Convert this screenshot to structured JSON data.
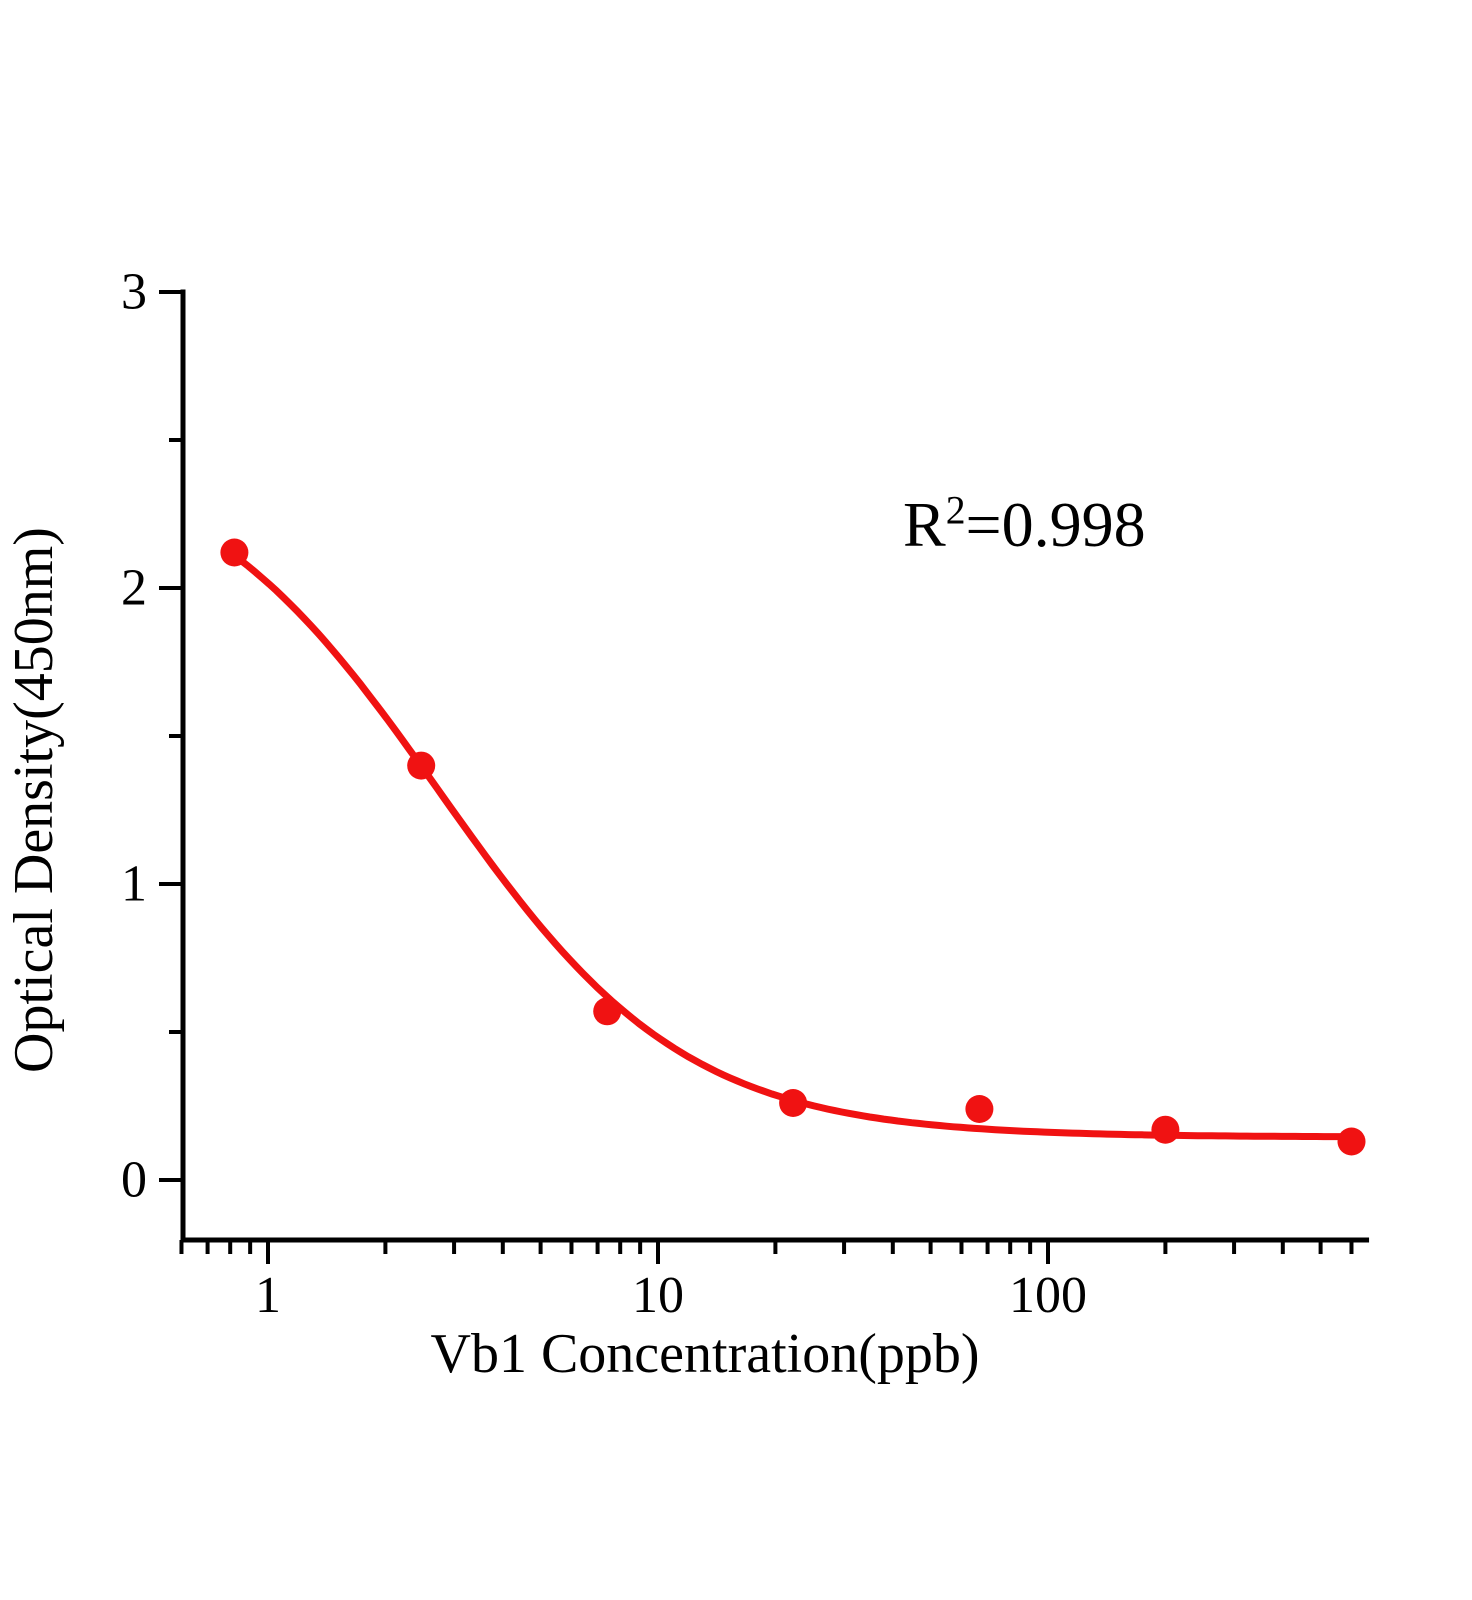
{
  "chart_data": {
    "type": "scatter",
    "title": "",
    "xlabel": "Vb1 Concentration(ppb)",
    "ylabel": "Optical Density(450nm)",
    "annotation": {
      "base": "R",
      "exponent": "2",
      "rest": "=0.998"
    },
    "x_scale": "log",
    "xlim": [
      0.6,
      650
    ],
    "ylim": [
      -0.2,
      3
    ],
    "x_ticks_major": {
      "values": [
        1,
        10,
        100
      ],
      "labels": [
        "1",
        "10",
        "100"
      ]
    },
    "x_ticks_minor": [
      0.6,
      0.7,
      0.8,
      0.9,
      2,
      3,
      4,
      5,
      6,
      7,
      8,
      9,
      20,
      30,
      40,
      50,
      60,
      70,
      80,
      90,
      200,
      300,
      400,
      500,
      600
    ],
    "y_ticks_major": {
      "values": [
        0,
        1,
        2,
        3
      ],
      "labels": [
        "0",
        "1",
        "2",
        "3"
      ]
    },
    "y_ticks_minor": [
      0.5,
      1.5,
      2.5
    ],
    "grid": "off",
    "legend": "none",
    "points": {
      "x": [
        0.82,
        2.47,
        7.41,
        22.2,
        66.7,
        200,
        600
      ],
      "y": [
        2.12,
        1.4,
        0.57,
        0.26,
        0.24,
        0.17,
        0.13
      ]
    },
    "fit_curve": {
      "model": "4PL",
      "equation": "y = d + (a - d) / (1 + (x/c)^b)",
      "a": 2.48,
      "b": 1.38,
      "c": 2.75,
      "d": 0.145,
      "x_start": 0.82,
      "x_end": 600
    },
    "colors": {
      "series": "#f01212",
      "axis": "#000000",
      "text": "#000000",
      "background": "#ffffff"
    }
  }
}
